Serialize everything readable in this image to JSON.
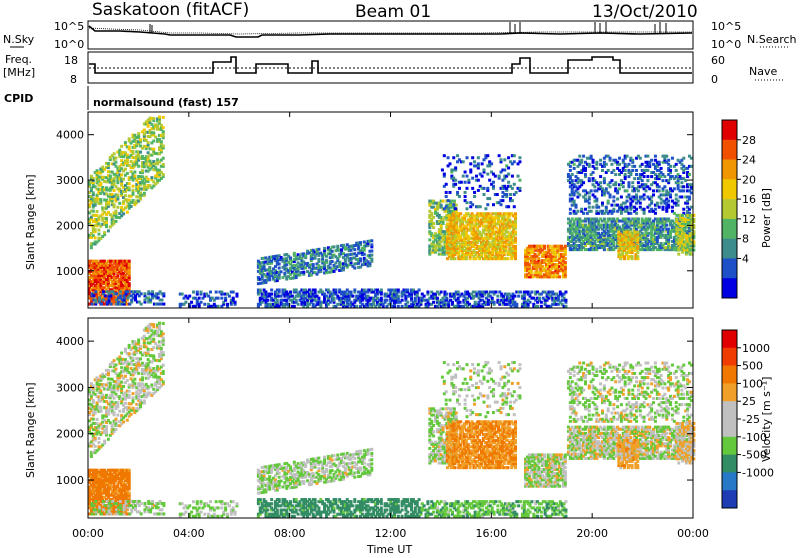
{
  "header": {
    "title": "Saskatoon (fitACF)",
    "beam": "Beam 01",
    "date": "13/Oct/2010"
  },
  "left_labels": {
    "nsky": "N.Sky",
    "freq": "Freq.",
    "freq_unit": "[MHz]",
    "cpid": "CPID"
  },
  "right_labels": {
    "nsearch": "N.Search",
    "nave": "Nave"
  },
  "cpid_text": "normalsound (fast) 157",
  "noise_panel": {
    "left_ticks": [
      "10^5",
      "10^0"
    ],
    "right_ticks": [
      "10^5",
      "10^0"
    ]
  },
  "freq_panel": {
    "left_ticks": [
      "18",
      "8"
    ],
    "right_ticks": [
      "60",
      "0"
    ]
  },
  "chart_data": [
    {
      "type": "heatmap",
      "name": "power",
      "ylabel": "Slant Range [km]",
      "yticks": [
        "4000",
        "3000",
        "2000",
        "1000"
      ],
      "colorbar_label": "Power [dB]",
      "colorbar_ticks": [
        "28",
        "24",
        "20",
        "16",
        "12",
        "8",
        "4"
      ],
      "colors": [
        "#0000e0",
        "#1e50c8",
        "#3c8c8c",
        "#50b464",
        "#b4c832",
        "#f0c800",
        "#f09600",
        "#f05000",
        "#e00000"
      ]
    },
    {
      "type": "heatmap",
      "name": "velocity",
      "ylabel": "Slant Range [km]",
      "yticks": [
        "4000",
        "3000",
        "2000",
        "1000"
      ],
      "colorbar_label": "Velocity [m s⁻¹]",
      "colorbar_ticks": [
        "1000",
        "500",
        "100",
        "25",
        "-25",
        "-100",
        "-500",
        "-1000"
      ],
      "colors": [
        "#1e3cb4",
        "#2878c8",
        "#328c64",
        "#64c83c",
        "#c0c0c0",
        "#c0c0c0",
        "#f0a028",
        "#f07800",
        "#f03c00",
        "#e00000"
      ],
      "xticks": [
        "00:00",
        "04:00",
        "08:00",
        "12:00",
        "16:00",
        "20:00",
        "00:00"
      ],
      "xlabel": "Time UT"
    }
  ]
}
